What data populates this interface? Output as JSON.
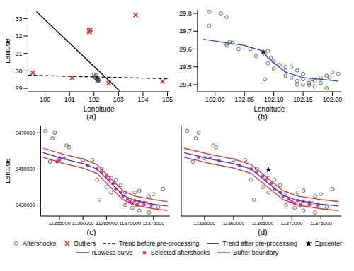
{
  "chart_data": [
    {
      "type": "scatter",
      "title": "(a)",
      "x_label": "Longitude",
      "y_label": "Latitude",
      "xlim": [
        99.3,
        105.1
      ],
      "ylim": [
        28.8,
        33.5
      ],
      "xticks": [
        100,
        101,
        102,
        103,
        104,
        105
      ],
      "yticks": [
        29,
        30,
        31,
        32,
        33
      ],
      "series": [
        {
          "name": "Aftershocks",
          "type": "scatter",
          "marker": "circle",
          "color": "#444444",
          "x": [
            102.0,
            102.05,
            102.08,
            102.1,
            102.12,
            102.15,
            102.18,
            102.2,
            102.1,
            102.14,
            102.06,
            102.17,
            102.12
          ],
          "y": [
            29.8,
            29.6,
            29.75,
            29.55,
            29.5,
            29.45,
            29.42,
            29.47,
            29.62,
            29.4,
            29.68,
            29.5,
            29.58
          ]
        },
        {
          "name": "Outliers",
          "type": "scatter",
          "marker": "x",
          "color": "#e0302f",
          "x": [
            99.5,
            101.1,
            101.8,
            101.82,
            101.85,
            102.6,
            103.7,
            104.8
          ],
          "y": [
            29.9,
            29.6,
            32.3,
            32.22,
            32.36,
            29.3,
            33.2,
            29.4
          ]
        },
        {
          "name": "Trend before pre-processing",
          "type": "line",
          "line_style": "dashed",
          "color": "#000000",
          "x": [
            99.3,
            105.0
          ],
          "y": [
            29.75,
            29.55
          ]
        },
        {
          "name": "Trend after pre-processing",
          "type": "line",
          "line_style": "solid",
          "color": "#000000",
          "x": [
            99.65,
            103.05
          ],
          "y": [
            33.4,
            28.85
          ]
        }
      ]
    },
    {
      "type": "scatter",
      "title": "(b)",
      "x_label": "Longitude",
      "xlim": [
        101.97,
        102.215
      ],
      "ylim": [
        29.36,
        29.82
      ],
      "xticks": [
        {
          "value": 102,
          "label": "102.00"
        },
        102.05,
        {
          "value": 102.1,
          "label": "102.10"
        },
        102.15,
        {
          "value": 102.2,
          "label": "102.20"
        }
      ],
      "yticks": [
        29.4,
        29.5,
        29.6,
        29.7,
        29.8
      ],
      "series": [
        {
          "name": "Aftershocks",
          "type": "scatter",
          "marker": "circle",
          "color": "#444444",
          "x": [
            101.99,
            102.01,
            102.02,
            101.99,
            102.02,
            102.025,
            102.03,
            102.02,
            102.04,
            102.06,
            102.07,
            102.085,
            102.09,
            102.095,
            102.1,
            102.09,
            102.11,
            102.12,
            102.1,
            102.085,
            102.13,
            102.14,
            102.12,
            102.13,
            102.14,
            102.15,
            102.16,
            102.15,
            102.17,
            102.16,
            102.18,
            102.19,
            102.195,
            102.17,
            102.19,
            102.14,
            102.2,
            102.21,
            102.15,
            102.18,
            102.165,
            102.12
          ],
          "y": [
            29.81,
            29.8,
            29.78,
            29.73,
            29.63,
            29.64,
            29.635,
            29.62,
            29.6,
            29.6,
            29.56,
            29.57,
            29.59,
            29.55,
            29.53,
            29.52,
            29.51,
            29.5,
            29.49,
            29.43,
            29.5,
            29.48,
            29.45,
            29.44,
            29.42,
            29.43,
            29.41,
            29.4,
            29.42,
            29.4,
            29.44,
            29.45,
            29.44,
            29.39,
            29.38,
            29.4,
            29.47,
            29.46,
            29.46,
            29.41,
            29.43,
            29.48
          ]
        },
        {
          "name": "Epicenter",
          "type": "scatter",
          "marker": "star",
          "color": "#000000",
          "x": [
            102.082
          ],
          "y": [
            29.585
          ]
        },
        {
          "name": "rLowess curve",
          "type": "line",
          "line_style": "solid",
          "color": "#2b3bd6",
          "x": [
            101.98,
            102.05,
            102.08,
            102.09,
            102.12,
            102.15,
            102.21
          ],
          "y": [
            29.655,
            29.62,
            29.59,
            29.55,
            29.47,
            29.44,
            29.42
          ]
        }
      ]
    },
    {
      "type": "scatter",
      "title": "(c)",
      "y_label": "Latitude",
      "xlim": [
        11351000,
        11378500
      ],
      "ylim": [
        3424000,
        3474000
      ],
      "xticks": [
        11355000,
        11360000,
        11365000,
        11370000,
        11375000
      ],
      "yticks": [
        3430000,
        3450000,
        3470000
      ],
      "series": [
        {
          "name": "Aftershocks",
          "type": "scatter",
          "marker": "circle",
          "color": "#444444",
          "x": [
            11352000,
            11354000,
            11353500,
            11356500,
            11357000,
            11353000,
            11355000,
            11360000,
            11362000,
            11364000,
            11363000,
            11366000,
            11368000,
            11366000,
            11369000,
            11363500,
            11371000,
            11372000,
            11374000,
            11375000,
            11377000,
            11369000,
            11372000,
            11374000,
            11376000,
            11371500,
            11373500,
            11370500,
            11367000,
            11365000
          ],
          "y": [
            3471000,
            3470000,
            3467000,
            3463000,
            3462000,
            3454000,
            3456000,
            3455000,
            3455000,
            3450000,
            3444000,
            3445000,
            3441000,
            3437000,
            3437000,
            3433000,
            3437000,
            3438000,
            3435000,
            3436000,
            3439000,
            3430000,
            3427000,
            3426000,
            3429000,
            3430000,
            3431000,
            3428500,
            3444000,
            3440000
          ]
        },
        {
          "name": "Selected aftershocks",
          "type": "scatter",
          "marker": "dot",
          "color": "#e8368f",
          "x": [
            11355000,
            11356000,
            11354500,
            11361000,
            11363000,
            11364000,
            11365000,
            11366500,
            11367000,
            11365500,
            11368000,
            11368500,
            11369500,
            11370000,
            11371000,
            11372000,
            11373000,
            11370500,
            11371500,
            11374500,
            11373000
          ],
          "y": [
            3455000,
            3456000,
            3454000,
            3452000,
            3450000,
            3448000,
            3446000,
            3442000,
            3439000,
            3444000,
            3437000,
            3435000,
            3433500,
            3432000,
            3432500,
            3432000,
            3431500,
            3431000,
            3430500,
            3430000,
            3430200
          ]
        },
        {
          "name": "rLowess curve",
          "type": "line",
          "line_style": "solid",
          "color": "#2b3bd6",
          "x": [
            11351500,
            11356000,
            11360000,
            11363000,
            11366000,
            11368500,
            11371000,
            11375000,
            11378000
          ],
          "y": [
            3459000,
            3455500,
            3453000,
            3450000,
            3442000,
            3435500,
            3432500,
            3430500,
            3429500
          ]
        },
        {
          "name": "Buffer boundary",
          "type": "line",
          "line_style": "solid",
          "color": "#e0302f",
          "x": [
            11351500,
            11356000,
            11360000,
            11363000,
            11366000,
            11368500,
            11371000,
            11375000,
            11378000
          ],
          "y": [
            3461500,
            3458000,
            3455500,
            3452500,
            3444500,
            3438000,
            3435000,
            3433000,
            3432000
          ]
        },
        {
          "name": "Buffer boundary",
          "type": "line",
          "line_style": "solid",
          "color": "#e0302f",
          "x": [
            11351500,
            11356000,
            11360000,
            11363000,
            11366000,
            11368500,
            11371000,
            11375000,
            11378000
          ],
          "y": [
            3456500,
            3453000,
            3450500,
            3447500,
            3439500,
            3433000,
            3430000,
            3428000,
            3427000
          ]
        }
      ]
    },
    {
      "type": "scatter",
      "title": "(d)",
      "tick_labels": "x",
      "xlim": [
        11351000,
        11378500
      ],
      "ylim": [
        3424000,
        3474000
      ],
      "xticks": [
        11355000,
        11360000,
        11365000,
        11370000,
        11375000
      ],
      "yticks": [
        3430000,
        3450000,
        3470000
      ],
      "series": [
        {
          "name": "Aftershocks",
          "type": "scatter",
          "marker": "circle",
          "color": "#444444",
          "x": [
            11352000,
            11354000,
            11353500,
            11356500,
            11357000,
            11353000,
            11355000,
            11360000,
            11362000,
            11364000,
            11363000,
            11366000,
            11368000,
            11366000,
            11369000,
            11363500,
            11371000,
            11372000,
            11374000,
            11375000,
            11377000,
            11369000,
            11372000,
            11374000,
            11376000,
            11371500,
            11373500,
            11370500,
            11367000,
            11365000
          ],
          "y": [
            3471000,
            3470000,
            3467000,
            3463000,
            3462000,
            3454000,
            3456000,
            3455000,
            3455000,
            3450000,
            3444000,
            3445000,
            3441000,
            3437000,
            3437000,
            3433000,
            3437000,
            3438000,
            3435000,
            3436000,
            3439000,
            3430000,
            3427000,
            3426000,
            3429000,
            3430000,
            3431000,
            3428500,
            3444000,
            3440000
          ]
        },
        {
          "name": "Selected aftershocks",
          "type": "scatter",
          "marker": "dot",
          "color": "#e8368f",
          "x": [
            11354000,
            11356000,
            11357500,
            11361000,
            11363000,
            11364000,
            11365000,
            11366500,
            11367000,
            11365500,
            11368000,
            11368500,
            11369500,
            11370000,
            11371000,
            11372000,
            11373000,
            11370500,
            11371500,
            11374500,
            11373000
          ],
          "y": [
            3456500,
            3456000,
            3454500,
            3452000,
            3450000,
            3448000,
            3446000,
            3442000,
            3439000,
            3444000,
            3437000,
            3435000,
            3433500,
            3432000,
            3432500,
            3432000,
            3431500,
            3431000,
            3430500,
            3430000,
            3430200
          ]
        },
        {
          "name": "Epicenter",
          "type": "scatter",
          "marker": "star",
          "color": "#000000",
          "x": [
            11366000
          ],
          "y": [
            3449500
          ]
        },
        {
          "name": "rLowess curve",
          "type": "line",
          "line_style": "solid",
          "color": "#2b3bd6",
          "x": [
            11351500,
            11356000,
            11360000,
            11363000,
            11366000,
            11368500,
            11371000,
            11375000,
            11378000
          ],
          "y": [
            3459000,
            3455500,
            3453000,
            3450000,
            3442000,
            3435500,
            3432500,
            3430500,
            3429500
          ]
        },
        {
          "name": "Buffer boundary",
          "type": "line",
          "line_style": "solid",
          "color": "#e0302f",
          "x": [
            11351500,
            11356000,
            11360000,
            11363000,
            11366000,
            11368500,
            11371000,
            11375000,
            11378000
          ],
          "y": [
            3461500,
            3458000,
            3455500,
            3452500,
            3444500,
            3438000,
            3435000,
            3433000,
            3432000
          ]
        },
        {
          "name": "Buffer boundary",
          "type": "line",
          "line_style": "solid",
          "color": "#e0302f",
          "x": [
            11351500,
            11356000,
            11360000,
            11363000,
            11366000,
            11368500,
            11371000,
            11375000,
            11378000
          ],
          "y": [
            3456500,
            3453000,
            3450500,
            3447500,
            3439500,
            3433000,
            3430000,
            3428000,
            3427000
          ]
        }
      ]
    }
  ]
}
